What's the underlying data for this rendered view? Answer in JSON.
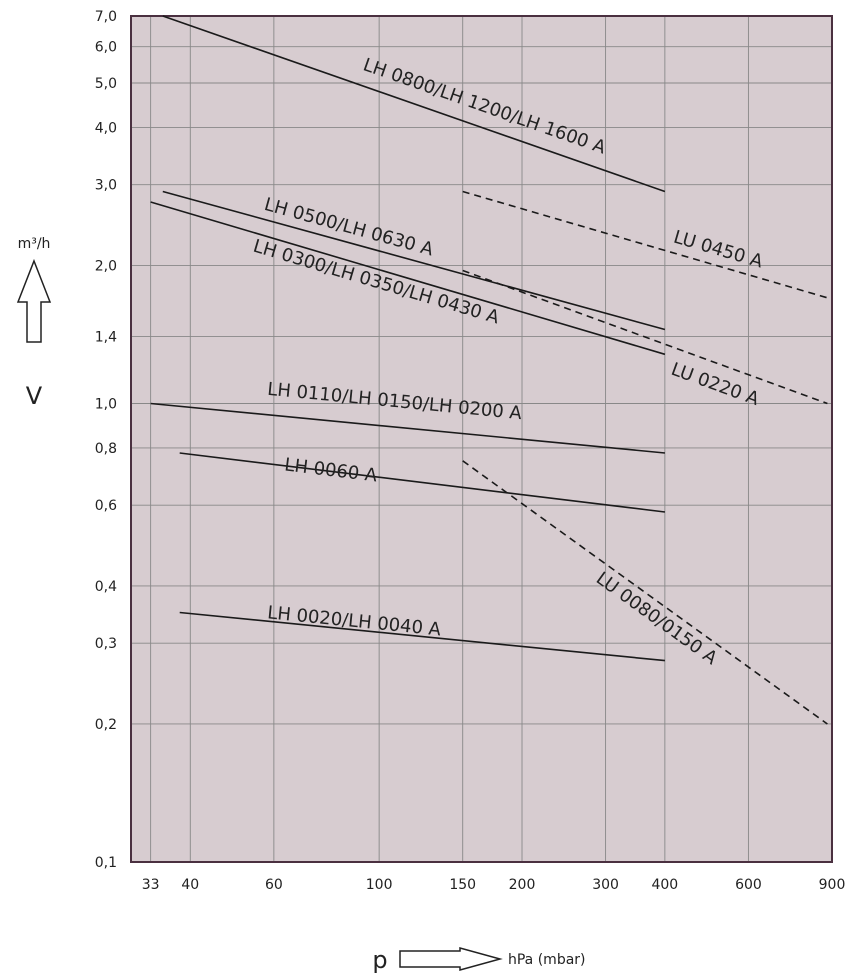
{
  "chart_data": {
    "type": "line",
    "x_scale": "log",
    "y_scale": "log",
    "grid": true,
    "xlim": [
      30,
      900
    ],
    "ylim": [
      0.1,
      7.0
    ],
    "xticks": [
      33,
      40,
      60,
      100,
      150,
      200,
      300,
      400,
      600,
      900
    ],
    "xtick_labels": [
      "33",
      "40",
      "60",
      "100",
      "150",
      "200",
      "300",
      "400",
      "600",
      "900"
    ],
    "yticks": [
      0.1,
      0.2,
      0.3,
      0.4,
      0.6,
      0.8,
      1.0,
      1.4,
      2.0,
      3.0,
      4.0,
      5.0,
      6.0,
      7.0
    ],
    "ytick_labels": [
      "0,1",
      "0,2",
      "0,3",
      "0,4",
      "0,6",
      "0,8",
      "1,0",
      "1,4",
      "2,0",
      "3,0",
      "4,0",
      "5,0",
      "6,0",
      "7,0"
    ],
    "ylabel_unit": "m³/h",
    "ylabel_symbol": "V",
    "xlabel_symbol": "p",
    "xlabel_unit": "hPa (mbar)",
    "background_color": "#d7ccd0",
    "grid_color": "#888888",
    "frame_color": "#4a3040",
    "line_color": "#1a1a1a",
    "series": [
      {
        "name": "LH 0800/LH 1200/LH 1600 A",
        "style": "solid",
        "x": [
          35,
          400
        ],
        "y": [
          7.0,
          2.9
        ]
      },
      {
        "name": "LH 0500/LH 0630 A",
        "style": "solid",
        "x": [
          35,
          400
        ],
        "y": [
          2.9,
          1.45
        ]
      },
      {
        "name": "LH 0300/LH 0350/LH 0430 A",
        "style": "solid",
        "x": [
          33,
          400
        ],
        "y": [
          2.75,
          1.28
        ]
      },
      {
        "name": "LH 0110/LH 0150/LH 0200 A",
        "style": "solid",
        "x": [
          33,
          400
        ],
        "y": [
          1.0,
          0.78
        ]
      },
      {
        "name": "LH 0060 A",
        "style": "solid",
        "x": [
          38,
          400
        ],
        "y": [
          0.78,
          0.58
        ]
      },
      {
        "name": "LH 0020/LH 0040 A",
        "style": "solid",
        "x": [
          38,
          400
        ],
        "y": [
          0.35,
          0.275
        ]
      },
      {
        "name": "LU 0450 A",
        "style": "dashed",
        "x": [
          150,
          880
        ],
        "y": [
          2.9,
          1.7
        ]
      },
      {
        "name": "LU 0220 A",
        "style": "dashed",
        "x": [
          150,
          880
        ],
        "y": [
          1.95,
          1.0
        ]
      },
      {
        "name": "LU 0080/0150 A",
        "style": "dashed",
        "x": [
          150,
          880
        ],
        "y": [
          0.75,
          0.2
        ]
      }
    ],
    "labels": [
      {
        "text": "LH 0800/LH 1200/LH 1600 A",
        "x": 92,
        "y": 5.35
      },
      {
        "text": "LH 0500/LH 0630 A",
        "x": 57,
        "y": 2.65
      },
      {
        "text": "LH 0300/LH 0350/LH 0430 A",
        "x": 54,
        "y": 2.15
      },
      {
        "text": "LH 0110/LH 0150/LH 0200 A",
        "x": 58,
        "y": 1.045
      },
      {
        "text": "LH 0060 A",
        "x": 63,
        "y": 0.715
      },
      {
        "text": "LH 0020/LH 0040 A",
        "x": 58,
        "y": 0.34
      },
      {
        "text": "LU 0450 A",
        "x": 415,
        "y": 2.25
      },
      {
        "text": "LU 0220 A",
        "x": 410,
        "y": 1.16
      },
      {
        "text": "LU 0080/0150 A",
        "x": 285,
        "y": 0.41
      }
    ]
  }
}
